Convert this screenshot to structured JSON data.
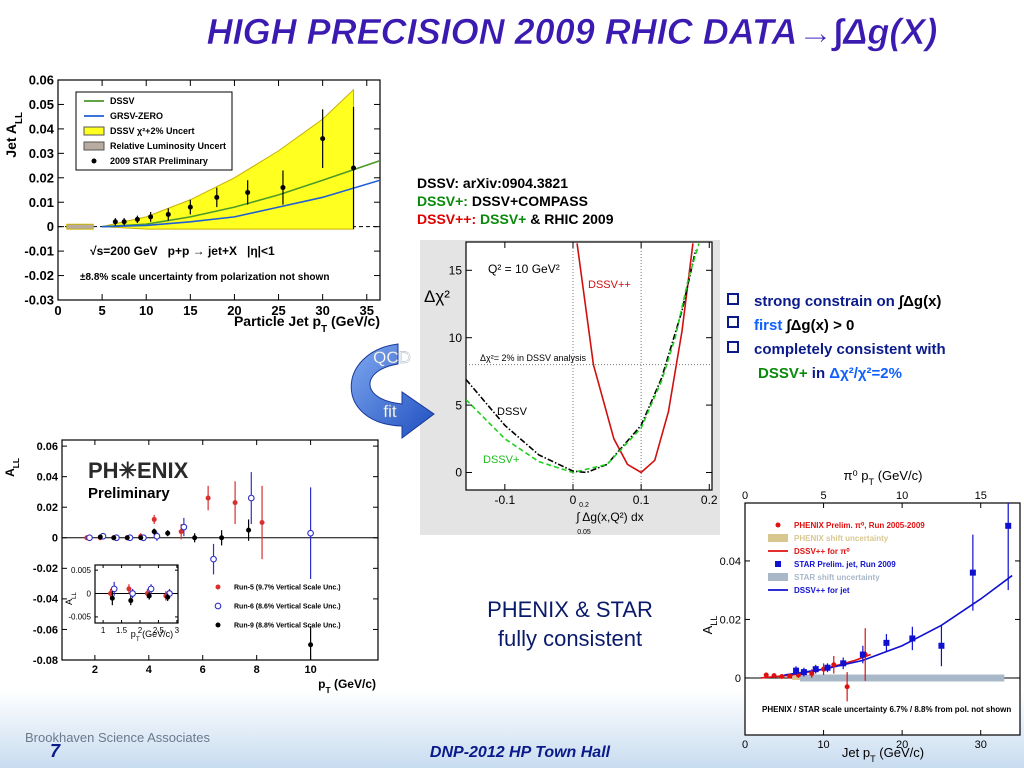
{
  "slide": {
    "title": "HIGH PRECISION 2009 RHIC DATA→∫Δg(X)",
    "notes": [
      [
        "DSSV: arXiv:0904.3821"
      ],
      [
        "DSSV+:",
        "DSSV+COMPASS"
      ],
      [
        "DSSV++:",
        "DSSV+",
        "& RHIC 2009"
      ]
    ],
    "bullets": [
      [
        "strong constrain on",
        "∫Δg(x)"
      ],
      [
        "first",
        "∫Δg(x) > 0"
      ],
      [
        "completely consistent with"
      ],
      [
        "DSSV+",
        "in",
        "Δχ²/χ²=2%"
      ]
    ],
    "arrow": [
      "QCD",
      "fit"
    ],
    "conclusion": [
      "PHENIX & STAR",
      "fully consistent"
    ],
    "footer": {
      "org": "Brookhaven Science Associates",
      "page": "7",
      "event": "DNP-2012 HP Town Hall"
    }
  },
  "chart_data": [
    {
      "type": "line",
      "ylabel": [
        "Jet A",
        "LL"
      ],
      "xlabel": [
        "Particle Jet p",
        "T",
        " (GeV/c)"
      ],
      "xlim": [
        0,
        36.5
      ],
      "ylim": [
        -0.03,
        0.06
      ],
      "xticks": [
        0,
        5,
        10,
        15,
        20,
        25,
        30,
        35
      ],
      "yticks": [
        -0.03,
        -0.02,
        -0.01,
        0,
        0.01,
        0.02,
        0.03,
        0.04,
        0.05,
        0.06
      ],
      "zero_line": true,
      "legend": "upper left",
      "annotations": [
        "√s=200 GeV   p+p → jet+X   |η|<1",
        "±8.8% scale uncertainty from polarization not shown"
      ],
      "series": [
        {
          "name": "DSSV",
          "style": "line",
          "color": "#4c9a2a",
          "x": [
            5,
            10,
            15,
            20,
            25,
            30,
            36.5
          ],
          "values": [
            0,
            0.001,
            0.004,
            0.008,
            0.013,
            0.019,
            0.027
          ]
        },
        {
          "name": "GRSV-ZERO",
          "style": "line",
          "color": "#1f5fd6",
          "x": [
            5,
            10,
            15,
            20,
            25,
            30,
            36.5
          ],
          "values": [
            0,
            0.0005,
            0.002,
            0.004,
            0.008,
            0.012,
            0.019
          ]
        },
        {
          "name": "DSSV χ²+2% Uncert",
          "style": "band",
          "color": "#ffff20",
          "x": [
            5,
            10,
            15,
            20,
            25,
            30,
            33.5
          ],
          "upper": [
            0,
            0.004,
            0.011,
            0.02,
            0.031,
            0.044,
            0.056
          ],
          "lower": [
            0,
            -0.001,
            -0.001,
            -0.001,
            -0.001,
            -0.001,
            -0.001
          ]
        },
        {
          "name": "Relative Luminosity Uncert",
          "style": "band",
          "color": "#b8aca0",
          "x": [
            1,
            4
          ],
          "upper": [
            0.001,
            0.001
          ],
          "lower": [
            -0.001,
            -0.001
          ]
        },
        {
          "name": "2009 STAR Preliminary",
          "style": "points",
          "marker": "circle",
          "color": "#000000",
          "x": [
            6.5,
            7.5,
            9,
            10.5,
            12.5,
            15,
            18,
            21.5,
            25.5,
            30,
            33.5
          ],
          "values": [
            0.002,
            0.002,
            0.003,
            0.004,
            0.005,
            0.008,
            0.012,
            0.014,
            0.016,
            0.036,
            0.024
          ],
          "errors": [
            0.0015,
            0.0015,
            0.0015,
            0.002,
            0.0025,
            0.003,
            0.004,
            0.005,
            0.007,
            0.012,
            0.025
          ]
        }
      ]
    },
    {
      "type": "line",
      "ylabel": "Δχ²",
      "xlabel": "∫ Δg(x,Q²) dx",
      "xlabel_limits": [
        "0.05",
        "0.2"
      ],
      "xlim": [
        -0.157,
        0.204
      ],
      "ylim": [
        -1.3,
        17.1
      ],
      "xticks": [
        -0.1,
        0,
        0.1,
        0.2
      ],
      "yticks": [
        0,
        5,
        10,
        15
      ],
      "hlines": [
        8
      ],
      "vlines": [
        0,
        0.1
      ],
      "annotations": [
        "Q² = 10 GeV²",
        "Δχ²= 2% in DSSV analysis"
      ],
      "series": [
        {
          "name": "DSSV++",
          "style": "line",
          "color": "#d01010",
          "x": [
            0.006,
            0.03,
            0.06,
            0.08,
            0.1,
            0.12,
            0.14,
            0.16,
            0.176
          ],
          "values": [
            17,
            8,
            2.5,
            0.6,
            0,
            0.9,
            4.5,
            10.5,
            17
          ]
        },
        {
          "name": "DSSV",
          "style": "line",
          "dash": "dashdot",
          "color": "#000000",
          "x": [
            -0.157,
            -0.1,
            -0.05,
            0,
            0.02,
            0.05,
            0.1,
            0.13,
            0.16,
            0.18
          ],
          "values": [
            6.9,
            3.5,
            1.3,
            0.1,
            0,
            0.6,
            3.5,
            7,
            12,
            16.5
          ]
        },
        {
          "name": "DSSV+",
          "style": "line",
          "dash": "dashed",
          "color": "#20d020",
          "x": [
            -0.157,
            -0.1,
            -0.05,
            0,
            0.05,
            0.1,
            0.13,
            0.15,
            0.17,
            0.185
          ],
          "values": [
            5.4,
            2.5,
            0.8,
            0,
            0.6,
            3.3,
            6.8,
            10,
            14.5,
            17
          ]
        }
      ]
    },
    {
      "type": "scatter",
      "ylabel": [
        "A",
        "LL"
      ],
      "xlabel": [
        "p",
        "T",
        " (GeV/c)"
      ],
      "xlim": [
        0.78,
        12.5
      ],
      "ylim": [
        -0.08,
        0.064
      ],
      "xticks": [
        2,
        4,
        6,
        8,
        10
      ],
      "yticks": [
        -0.08,
        -0.06,
        -0.04,
        -0.02,
        0,
        0.02,
        0.04,
        0.06
      ],
      "zero_line": true,
      "legend": "lower right",
      "annotations": [
        "PH✳ENIX",
        "Preliminary"
      ],
      "series": [
        {
          "name": "Run-5 (9.7% Vertical Scale Unc.)",
          "style": "points",
          "marker": "circle",
          "color": "#d83030",
          "x": [
            1.7,
            2.2,
            2.7,
            3.2,
            3.7,
            4.2,
            5.2,
            6.2,
            7.2,
            8.2
          ],
          "values": [
            0,
            0,
            0,
            0,
            0.001,
            0.012,
            0.004,
            0.026,
            0.023,
            0.01
          ],
          "errors": [
            0.0005,
            0.0008,
            0.001,
            0.001,
            0.002,
            0.003,
            0.005,
            0.008,
            0.014,
            0.024
          ]
        },
        {
          "name": "Run-6 (8.6% Vertical Scale Unc.)",
          "style": "points",
          "marker": "open-circle",
          "color": "#3030c8",
          "x": [
            1.8,
            2.3,
            2.8,
            3.3,
            3.8,
            4.3,
            5.3,
            6.4,
            7.8,
            10
          ],
          "values": [
            0,
            0.001,
            0,
            0,
            0,
            0.001,
            0.007,
            -0.014,
            0.026,
            0.003
          ],
          "errors": [
            0.001,
            0.001,
            0.001,
            0.001,
            0.002,
            0.003,
            0.006,
            0.01,
            0.017,
            0.03
          ]
        },
        {
          "name": "Run-9 (8.8% Vertical Scale Unc.)",
          "style": "points",
          "marker": "circle",
          "color": "#000000",
          "x": [
            2.2,
            2.7,
            3.2,
            3.7,
            4.2,
            4.7,
            5.7,
            6.7,
            7.7,
            10
          ],
          "values": [
            0.0005,
            0,
            0,
            0,
            0.004,
            0.003,
            0,
            0,
            0.005,
            -0.07
          ],
          "errors": [
            0.001,
            0.001,
            0.001,
            0.001,
            0.002,
            0.002,
            0.003,
            0.005,
            0.007,
            0.012
          ]
        }
      ]
    },
    {
      "type": "scatter",
      "ylabel": [
        "A",
        "LL"
      ],
      "xlabel": [
        "p",
        "T",
        " (GeV/c)"
      ],
      "xlim": [
        0.78,
        3.03
      ],
      "ylim": [
        -0.0063,
        0.0061
      ],
      "xticks": [
        1,
        1.5,
        2,
        2.5,
        3
      ],
      "yticks": [
        -0.005,
        0,
        0.005
      ],
      "zero_line": true,
      "series": [
        {
          "style": "points",
          "marker": "circle",
          "color": "#d83030",
          "x": [
            1.2,
            1.7,
            2.2,
            2.7
          ],
          "values": [
            0,
            0.001,
            0,
            -0.0005
          ],
          "errors": [
            0.001,
            0.001,
            0.001,
            0.001
          ]
        },
        {
          "style": "points",
          "marker": "open-circle",
          "color": "#3030c8",
          "x": [
            1.3,
            1.8,
            2.3,
            2.8
          ],
          "values": [
            0.001,
            0,
            0.001,
            0
          ],
          "errors": [
            0.0015,
            0.001,
            0.001,
            0.001
          ]
        },
        {
          "style": "points",
          "marker": "circle",
          "color": "#000000",
          "x": [
            1.25,
            1.75,
            2.25,
            2.75
          ],
          "values": [
            -0.001,
            -0.0015,
            -0.0005,
            -0.0008
          ],
          "errors": [
            0.0015,
            0.001,
            0.0008,
            0.0008
          ]
        }
      ]
    },
    {
      "type": "scatter",
      "ylabel": [
        "A",
        "LL"
      ],
      "xlabel": [
        "Jet p",
        "T",
        " (GeV/c)"
      ],
      "x2label": [
        "π⁰ p",
        "T",
        " (GeV/c)"
      ],
      "xlim": [
        0,
        35
      ],
      "x2lim": [
        0,
        17.5
      ],
      "ylim": [
        -0.0195,
        0.0598
      ],
      "xticks": [
        0,
        10,
        20,
        30
      ],
      "x2ticks": [
        0,
        5,
        10,
        15
      ],
      "yticks": [
        0,
        0.02,
        0.04
      ],
      "zero_line": true,
      "legend": "upper left",
      "annotations": [
        "PHENIX / STAR scale uncertainty 6.7% / 8.8% from pol. not shown"
      ],
      "series": [
        {
          "name": "PHENIX Prelim. π⁰, Run 2005-2009",
          "style": "points",
          "marker": "circle",
          "axis": "x2",
          "color": "#e01010",
          "x": [
            1.35,
            1.85,
            2.35,
            2.85,
            3.4,
            4.25,
            5,
            5.65,
            6.5,
            7.65
          ],
          "values": [
            0.001,
            0.0008,
            0.0005,
            0.0006,
            0.001,
            0.0015,
            0.003,
            0.0045,
            -0.003,
            0.008
          ],
          "errors": [
            0.0005,
            0.0005,
            0.0006,
            0.0007,
            0.001,
            0.0015,
            0.002,
            0.003,
            0.005,
            0.009
          ]
        },
        {
          "name": "PHENIX shift uncertainty",
          "style": "band",
          "axis": "x2",
          "color": "#d8c890",
          "x": [
            3,
            8
          ],
          "upper": [
            0.0007,
            0.0007
          ],
          "lower": [
            -0.0007,
            -0.0007
          ]
        },
        {
          "name": "DSSV++ for π⁰",
          "style": "line",
          "axis": "x2",
          "color": "#e01010",
          "x": [
            1,
            3,
            5,
            7,
            8
          ],
          "values": [
            0,
            0.001,
            0.003,
            0.006,
            0.008
          ]
        },
        {
          "name": "STAR Prelim. jet, Run 2009",
          "style": "points",
          "marker": "square",
          "color": "#1010d0",
          "x": [
            6.5,
            7.5,
            9,
            10.5,
            12.5,
            15,
            18,
            21.3,
            25,
            29,
            33.5
          ],
          "values": [
            0.0025,
            0.002,
            0.003,
            0.0035,
            0.005,
            0.008,
            0.012,
            0.0135,
            0.011,
            0.036,
            0.052
          ],
          "errors": [
            0.0015,
            0.0015,
            0.0015,
            0.0015,
            0.002,
            0.003,
            0.003,
            0.004,
            0.007,
            0.013,
            0.022
          ]
        },
        {
          "name": "STAR shift uncertainty",
          "style": "band",
          "color": "#a8b8c8",
          "x": [
            7,
            33
          ],
          "upper": [
            0.0012,
            0.0012
          ],
          "lower": [
            -0.0012,
            -0.0012
          ]
        },
        {
          "name": "DSSV++ for jet",
          "style": "line",
          "color": "#1010d0",
          "x": [
            5,
            10,
            15,
            20,
            25,
            30,
            34
          ],
          "values": [
            0.001,
            0.003,
            0.006,
            0.011,
            0.018,
            0.027,
            0.035
          ]
        }
      ]
    }
  ]
}
